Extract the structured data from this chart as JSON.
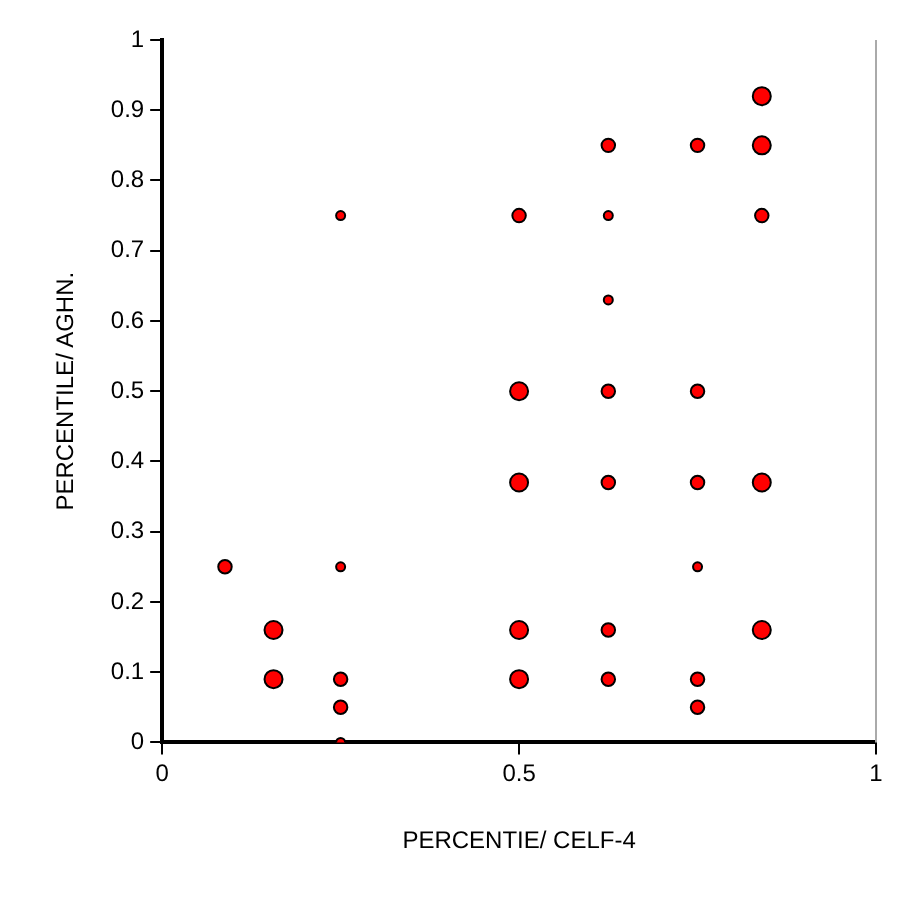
{
  "chart_data": {
    "type": "bubble",
    "xlabel": "PERCENTIE/ CELF-4",
    "ylabel": "PERCENTILE/ AGHN.",
    "x": [
      0.088,
      0.156,
      0.156,
      0.25,
      0.25,
      0.25,
      0.25,
      0.25,
      0.5,
      0.5,
      0.5,
      0.5,
      0.5,
      0.625,
      0.625,
      0.625,
      0.625,
      0.625,
      0.625,
      0.625,
      0.75,
      0.75,
      0.75,
      0.75,
      0.75,
      0.75,
      0.84,
      0.84,
      0.84,
      0.84,
      0.84
    ],
    "values": [
      0.25,
      0.16,
      0.09,
      0.75,
      0.25,
      0.09,
      0.05,
      0,
      0.75,
      0.5,
      0.37,
      0.16,
      0.09,
      0.85,
      0.75,
      0.63,
      0.5,
      0.37,
      0.16,
      0.09,
      0.85,
      0.5,
      0.37,
      0.25,
      0.09,
      0.05,
      0.92,
      0.85,
      0.75,
      0.37,
      0.16
    ],
    "sizes": [
      0.56,
      1,
      1,
      0.25,
      0.25,
      0.56,
      0.56,
      0.25,
      0.56,
      1,
      1,
      1,
      1,
      0.56,
      0.25,
      0.25,
      0.56,
      0.56,
      0.56,
      0.56,
      0.56,
      0.56,
      0.56,
      0.25,
      0.56,
      0.56,
      1,
      1,
      0.56,
      1,
      1
    ],
    "color": "#ff0000",
    "xlim": [
      0,
      1
    ],
    "xticks": [
      0,
      0.5,
      1
    ],
    "ylim": [
      0,
      1
    ],
    "yticks": [
      0,
      0.1,
      0.2,
      0.3,
      0.4,
      0.5,
      0.6,
      0.7,
      0.8,
      0.9,
      1
    ],
    "grid": false,
    "legend": false
  }
}
